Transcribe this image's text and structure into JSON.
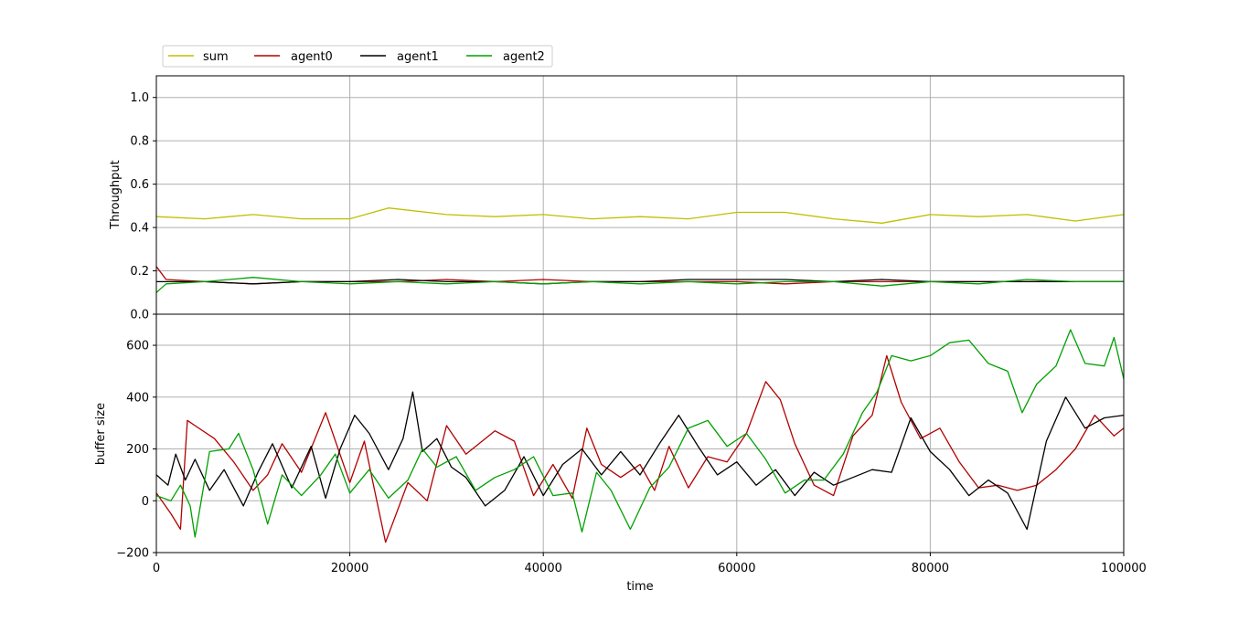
{
  "chart_data": [
    {
      "type": "line",
      "panel": "top",
      "title": "",
      "xlabel": "",
      "ylabel": "Throughput",
      "xlim": [
        0,
        100000
      ],
      "ylim": [
        0,
        1.1
      ],
      "yticks": [
        0.0,
        0.2,
        0.4,
        0.6,
        0.8,
        1.0
      ],
      "ytick_labels": [
        "0.0",
        "0.2",
        "0.4",
        "0.6",
        "0.8",
        "1.0"
      ],
      "grid": true,
      "legend": {
        "placement": "top-left-outside",
        "entries": [
          "sum",
          "agent0",
          "agent1",
          "agent2"
        ]
      },
      "series": [
        {
          "name": "sum",
          "color": "#bfbf00",
          "x": [
            0,
            5000,
            10000,
            15000,
            20000,
            24000,
            30000,
            35000,
            40000,
            45000,
            50000,
            55000,
            60000,
            65000,
            70000,
            75000,
            80000,
            85000,
            90000,
            95000,
            100000
          ],
          "values": [
            0.45,
            0.44,
            0.46,
            0.44,
            0.44,
            0.49,
            0.46,
            0.45,
            0.46,
            0.44,
            0.45,
            0.44,
            0.47,
            0.47,
            0.44,
            0.42,
            0.46,
            0.45,
            0.46,
            0.43,
            0.46
          ]
        },
        {
          "name": "agent0",
          "color": "#b20000",
          "x": [
            0,
            1000,
            5000,
            10000,
            15000,
            20000,
            25000,
            30000,
            35000,
            40000,
            45000,
            50000,
            55000,
            60000,
            65000,
            70000,
            75000,
            80000,
            85000,
            90000,
            95000,
            100000
          ],
          "values": [
            0.22,
            0.16,
            0.15,
            0.14,
            0.15,
            0.15,
            0.15,
            0.16,
            0.15,
            0.16,
            0.15,
            0.15,
            0.15,
            0.15,
            0.14,
            0.15,
            0.15,
            0.15,
            0.15,
            0.15,
            0.15,
            0.15
          ]
        },
        {
          "name": "agent1",
          "color": "#000000",
          "x": [
            0,
            5000,
            10000,
            15000,
            20000,
            25000,
            30000,
            35000,
            40000,
            45000,
            50000,
            55000,
            60000,
            65000,
            70000,
            75000,
            80000,
            85000,
            90000,
            95000,
            100000
          ],
          "values": [
            0.15,
            0.15,
            0.14,
            0.15,
            0.15,
            0.16,
            0.15,
            0.15,
            0.14,
            0.15,
            0.15,
            0.16,
            0.16,
            0.16,
            0.15,
            0.16,
            0.15,
            0.15,
            0.15,
            0.15,
            0.15
          ]
        },
        {
          "name": "agent2",
          "color": "#00a000",
          "x": [
            0,
            1000,
            5000,
            10000,
            15000,
            20000,
            25000,
            30000,
            35000,
            40000,
            45000,
            50000,
            55000,
            60000,
            65000,
            70000,
            75000,
            80000,
            85000,
            90000,
            95000,
            100000
          ],
          "values": [
            0.1,
            0.14,
            0.15,
            0.17,
            0.15,
            0.14,
            0.15,
            0.14,
            0.15,
            0.14,
            0.15,
            0.14,
            0.15,
            0.14,
            0.15,
            0.15,
            0.13,
            0.15,
            0.14,
            0.16,
            0.15,
            0.15
          ]
        }
      ]
    },
    {
      "type": "line",
      "panel": "bottom",
      "title": "",
      "xlabel": "time",
      "ylabel": "buffer size",
      "xlim": [
        0,
        100000
      ],
      "ylim": [
        -200,
        720
      ],
      "xticks": [
        0,
        20000,
        40000,
        60000,
        80000,
        100000
      ],
      "xtick_labels": [
        "0",
        "20000",
        "40000",
        "60000",
        "80000",
        "100000"
      ],
      "yticks": [
        -200,
        0,
        200,
        400,
        600
      ],
      "ytick_labels": [
        "−200",
        "0",
        "200",
        "400",
        "600"
      ],
      "grid": true,
      "series": [
        {
          "name": "agent0",
          "color": "#b20000",
          "x": [
            0,
            1500,
            2500,
            3200,
            4000,
            6000,
            8000,
            10000,
            11500,
            13000,
            15000,
            17500,
            20000,
            21500,
            22500,
            23700,
            26000,
            28000,
            30000,
            32000,
            35000,
            37000,
            39000,
            41000,
            43000,
            44500,
            46000,
            48000,
            50000,
            51500,
            53000,
            55000,
            57000,
            59000,
            61000,
            63000,
            64500,
            66000,
            68000,
            70000,
            72000,
            74000,
            75500,
            77000,
            79000,
            81000,
            83000,
            85000,
            87000,
            89000,
            91000,
            93000,
            95000,
            97000,
            99000,
            100000
          ],
          "values": [
            30,
            -50,
            -110,
            310,
            290,
            240,
            150,
            40,
            100,
            220,
            110,
            340,
            70,
            230,
            50,
            -160,
            70,
            0,
            290,
            180,
            270,
            230,
            20,
            140,
            10,
            280,
            140,
            90,
            140,
            40,
            210,
            50,
            170,
            150,
            260,
            460,
            390,
            220,
            60,
            20,
            250,
            330,
            560,
            380,
            240,
            280,
            150,
            50,
            60,
            40,
            60,
            120,
            200,
            330,
            250,
            280
          ]
        },
        {
          "name": "agent1",
          "color": "#000000",
          "x": [
            0,
            1200,
            2000,
            3000,
            4000,
            5500,
            7000,
            9000,
            10500,
            12000,
            14000,
            16000,
            17500,
            19000,
            20500,
            22000,
            24000,
            25500,
            26500,
            27500,
            29000,
            30500,
            32000,
            34000,
            36000,
            38000,
            40000,
            42000,
            44000,
            46000,
            48000,
            50000,
            52000,
            54000,
            56000,
            58000,
            60000,
            62000,
            64000,
            66000,
            68000,
            70000,
            72000,
            74000,
            76000,
            78000,
            80000,
            82000,
            84000,
            86000,
            88000,
            90000,
            92000,
            94000,
            96000,
            98000,
            100000
          ],
          "values": [
            100,
            60,
            180,
            80,
            160,
            40,
            120,
            -20,
            110,
            220,
            50,
            210,
            10,
            200,
            330,
            260,
            120,
            240,
            420,
            190,
            240,
            130,
            90,
            -20,
            40,
            170,
            20,
            140,
            200,
            100,
            190,
            100,
            220,
            330,
            210,
            100,
            150,
            60,
            120,
            20,
            110,
            60,
            90,
            120,
            110,
            320,
            190,
            120,
            20,
            80,
            30,
            -110,
            230,
            400,
            280,
            320,
            330
          ]
        },
        {
          "name": "agent2",
          "color": "#00a000",
          "x": [
            0,
            1500,
            2500,
            3500,
            4000,
            5500,
            7500,
            8500,
            10000,
            11500,
            13000,
            15000,
            17000,
            18500,
            20000,
            22000,
            24000,
            26000,
            27500,
            29000,
            31000,
            33000,
            35000,
            37000,
            39000,
            41000,
            43000,
            44000,
            45500,
            47000,
            49000,
            51000,
            53000,
            55000,
            57000,
            59000,
            61000,
            63000,
            65000,
            67000,
            69000,
            71000,
            73000,
            74500,
            76000,
            78000,
            80000,
            82000,
            84000,
            86000,
            88000,
            89500,
            91000,
            93000,
            94500,
            96000,
            98000,
            99000,
            100000
          ],
          "values": [
            20,
            0,
            60,
            -20,
            -140,
            190,
            200,
            260,
            120,
            -90,
            100,
            20,
            100,
            180,
            30,
            120,
            10,
            80,
            200,
            130,
            170,
            40,
            90,
            120,
            170,
            20,
            30,
            -120,
            110,
            40,
            -110,
            50,
            130,
            280,
            310,
            210,
            260,
            160,
            30,
            80,
            80,
            180,
            340,
            420,
            560,
            540,
            560,
            610,
            620,
            530,
            500,
            340,
            450,
            520,
            660,
            530,
            520,
            630,
            470
          ]
        }
      ]
    }
  ],
  "colors": {
    "sum": "#bfbf00",
    "agent0": "#b20000",
    "agent1": "#000000",
    "agent2": "#00a000",
    "grid": "#b0b0b0"
  }
}
